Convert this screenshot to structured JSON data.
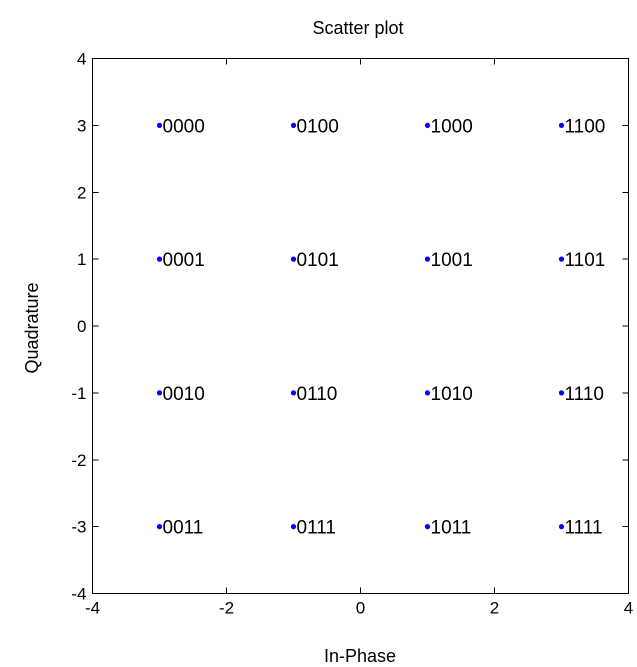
{
  "chart_data": {
    "type": "scatter",
    "title": "Scatter plot",
    "xlabel": "In-Phase",
    "ylabel": "Quadrature",
    "xlim": [
      -4,
      4
    ],
    "ylim": [
      -4,
      4
    ],
    "xticks": [
      "-4",
      "-2",
      "0",
      "2",
      "4"
    ],
    "yticks": [
      "4",
      "3",
      "2",
      "1",
      "0",
      "-1",
      "-2",
      "-3",
      "-4"
    ],
    "grid": false,
    "point_color": "#0000ff",
    "points": [
      {
        "x": -3,
        "y": 3,
        "label": "0000"
      },
      {
        "x": -1,
        "y": 3,
        "label": "0100"
      },
      {
        "x": 1,
        "y": 3,
        "label": "1000"
      },
      {
        "x": 3,
        "y": 3,
        "label": "1100"
      },
      {
        "x": -3,
        "y": 1,
        "label": "0001"
      },
      {
        "x": -1,
        "y": 1,
        "label": "0101"
      },
      {
        "x": 1,
        "y": 1,
        "label": "1001"
      },
      {
        "x": 3,
        "y": 1,
        "label": "1101"
      },
      {
        "x": -3,
        "y": -1,
        "label": "0010"
      },
      {
        "x": -1,
        "y": -1,
        "label": "0110"
      },
      {
        "x": 1,
        "y": -1,
        "label": "1010"
      },
      {
        "x": 3,
        "y": -1,
        "label": "1110"
      },
      {
        "x": -3,
        "y": -3,
        "label": "0011"
      },
      {
        "x": -1,
        "y": -3,
        "label": "0111"
      },
      {
        "x": 1,
        "y": -3,
        "label": "1011"
      },
      {
        "x": 3,
        "y": -3,
        "label": "1111"
      }
    ]
  }
}
